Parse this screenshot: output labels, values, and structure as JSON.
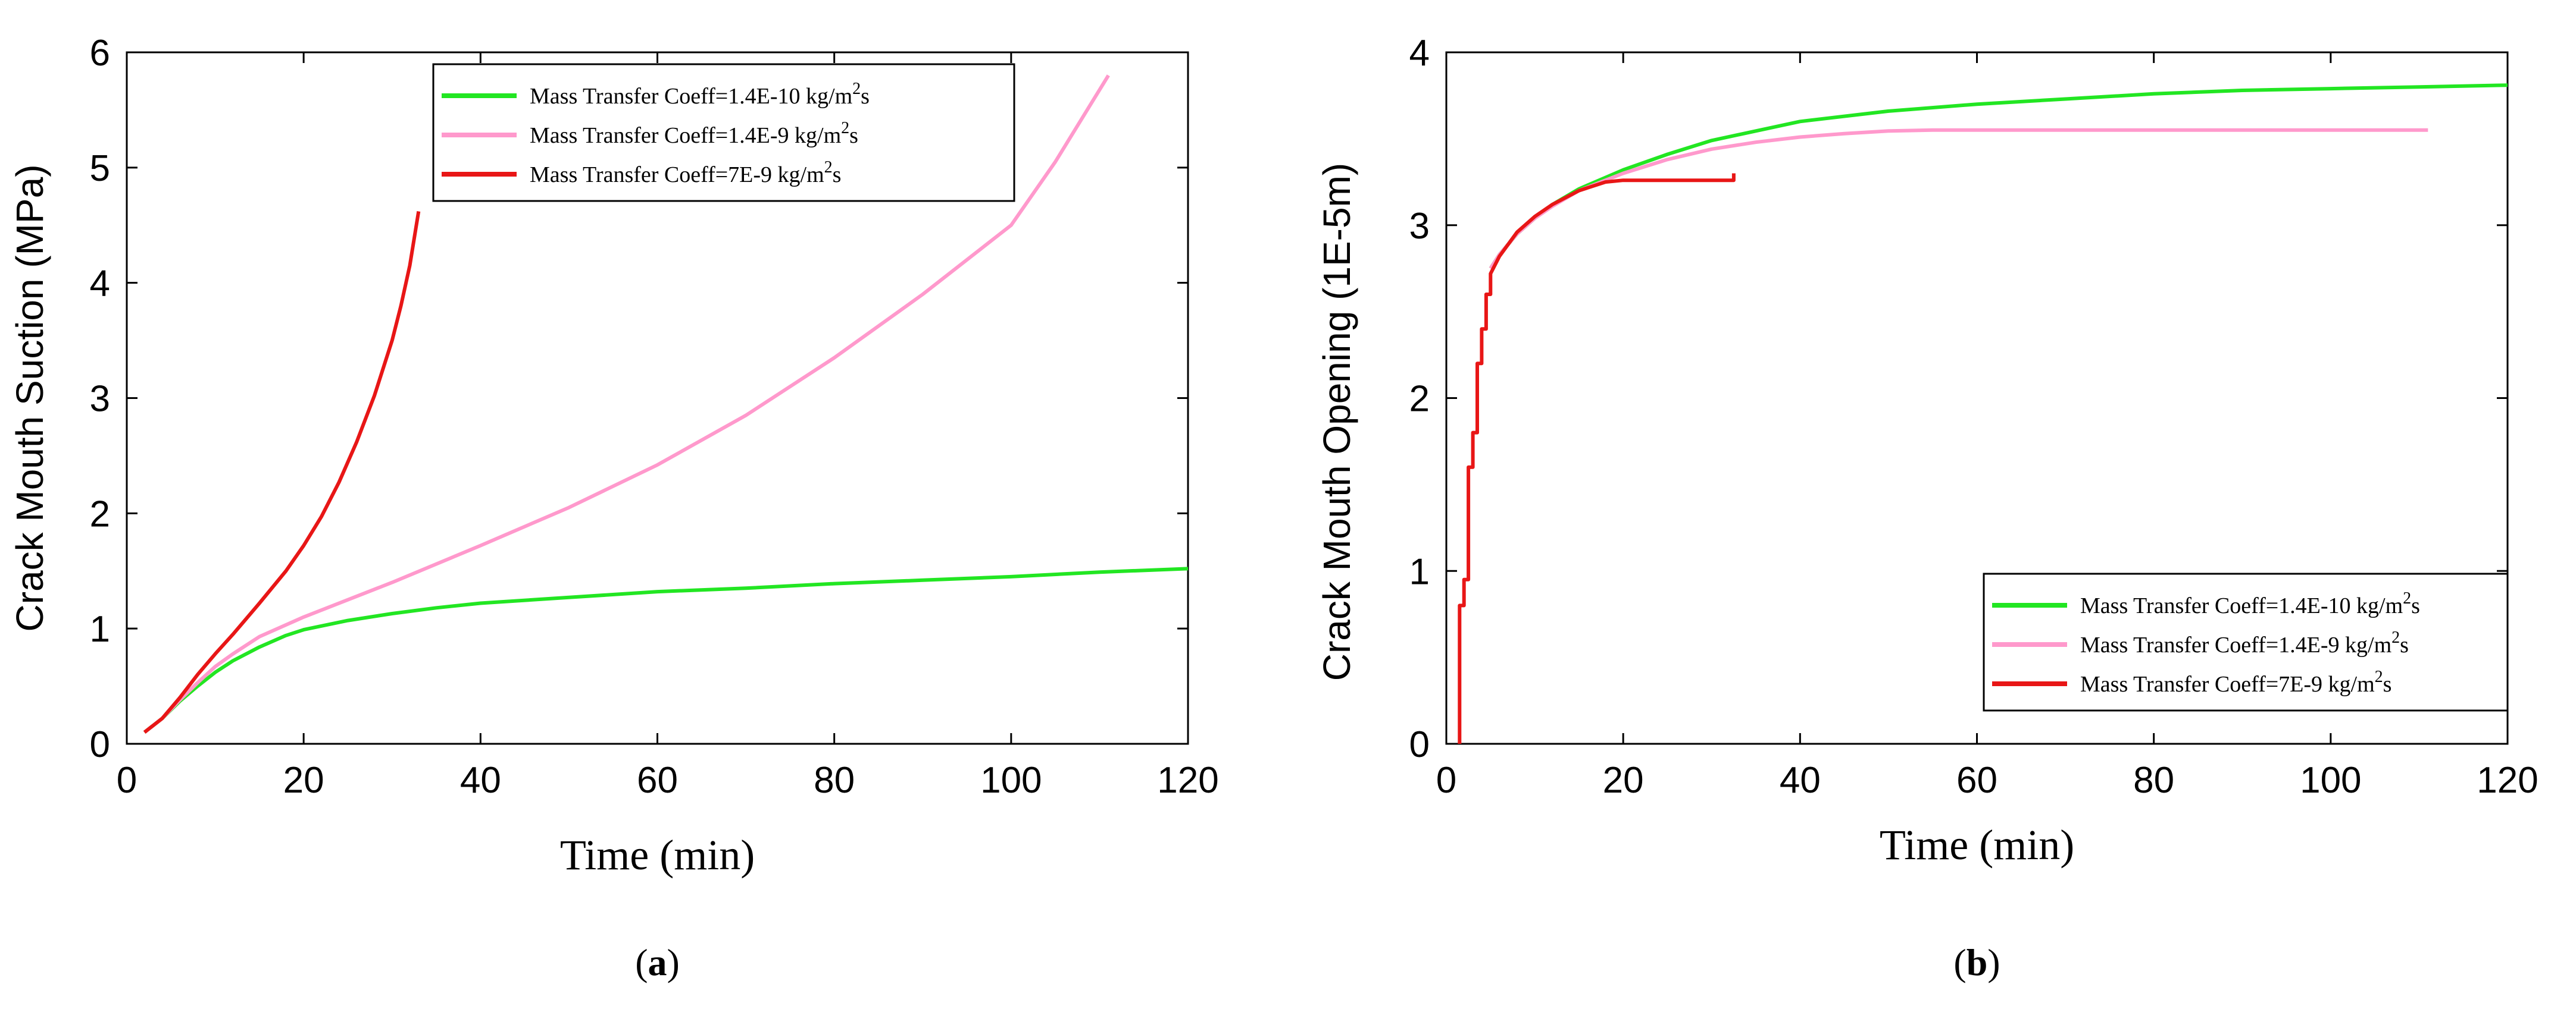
{
  "chart_data": [
    {
      "type": "line",
      "panel_label": "a",
      "title": "",
      "xlabel": "Time (min)",
      "ylabel": "Crack Mouth Suction (MPa)",
      "xlim": [
        0,
        120
      ],
      "ylim": [
        0,
        6
      ],
      "xticks": [
        "0",
        "20",
        "40",
        "60",
        "80",
        "100",
        "120"
      ],
      "yticks": [
        "0",
        "1",
        "2",
        "3",
        "4",
        "5",
        "6"
      ],
      "grid": false,
      "legend_position": "top-right",
      "series": [
        {
          "name": "Mass Transfer Coeff=1.4E-10 kg/m",
          "sup": "2",
          "unit_suffix": "s",
          "color": "#22e622",
          "x": [
            2,
            4,
            6,
            8,
            10,
            12,
            15,
            18,
            20,
            25,
            30,
            35,
            40,
            50,
            60,
            70,
            80,
            90,
            100,
            110,
            120
          ],
          "y": [
            0.1,
            0.22,
            0.37,
            0.5,
            0.62,
            0.72,
            0.84,
            0.94,
            0.99,
            1.07,
            1.13,
            1.18,
            1.22,
            1.27,
            1.32,
            1.35,
            1.39,
            1.42,
            1.45,
            1.49,
            1.52
          ]
        },
        {
          "name": "Mass Transfer Coeff=1.4E-9 kg/m",
          "sup": "2",
          "unit_suffix": "s",
          "color": "#ff99cc",
          "x": [
            2,
            4,
            6,
            8,
            10,
            12,
            15,
            20,
            25,
            30,
            40,
            50,
            60,
            70,
            80,
            90,
            100,
            105,
            111
          ],
          "y": [
            0.1,
            0.22,
            0.38,
            0.53,
            0.67,
            0.78,
            0.93,
            1.1,
            1.25,
            1.4,
            1.72,
            2.05,
            2.42,
            2.85,
            3.35,
            3.9,
            4.5,
            5.05,
            5.8
          ]
        },
        {
          "name": "Mass Transfer Coeff=7E-9 kg/m",
          "sup": "2",
          "unit_suffix": "s",
          "color": "#e81616",
          "x": [
            2,
            4,
            6,
            8,
            10,
            12,
            15,
            18,
            20,
            22,
            24,
            26,
            28,
            30,
            31,
            32,
            33
          ],
          "y": [
            0.1,
            0.22,
            0.4,
            0.6,
            0.78,
            0.95,
            1.22,
            1.5,
            1.72,
            1.97,
            2.27,
            2.62,
            3.02,
            3.5,
            3.8,
            4.15,
            4.62
          ]
        }
      ]
    },
    {
      "type": "line",
      "panel_label": "b",
      "title": "",
      "xlabel": "Time (min)",
      "ylabel": "Crack Mouth Opening (1E-5m)",
      "xlim": [
        0,
        120
      ],
      "ylim": [
        0,
        4
      ],
      "xticks": [
        "0",
        "20",
        "40",
        "60",
        "80",
        "100",
        "120"
      ],
      "yticks": [
        "0",
        "1",
        "2",
        "3",
        "4"
      ],
      "grid": false,
      "legend_position": "bottom-right",
      "series": [
        {
          "name": "Mass Transfer Coeff=1.4E-10 kg/m",
          "sup": "2",
          "unit_suffix": "s",
          "color": "#22e622",
          "x": [
            5,
            6,
            8,
            10,
            12,
            15,
            20,
            25,
            30,
            40,
            50,
            60,
            70,
            80,
            90,
            100,
            110,
            120
          ],
          "y": [
            2.75,
            2.83,
            2.95,
            3.04,
            3.12,
            3.21,
            3.32,
            3.41,
            3.49,
            3.6,
            3.66,
            3.7,
            3.73,
            3.76,
            3.78,
            3.79,
            3.8,
            3.81
          ]
        },
        {
          "name": "Mass Transfer Coeff=1.4E-9 kg/m",
          "sup": "2",
          "unit_suffix": "s",
          "color": "#ff99cc",
          "x": [
            5,
            6,
            8,
            10,
            12,
            15,
            20,
            25,
            30,
            35,
            40,
            45,
            50,
            55,
            60,
            80,
            100,
            111
          ],
          "y": [
            2.75,
            2.83,
            2.95,
            3.04,
            3.11,
            3.2,
            3.3,
            3.38,
            3.44,
            3.48,
            3.51,
            3.53,
            3.545,
            3.55,
            3.55,
            3.55,
            3.55,
            3.55
          ]
        },
        {
          "name": "Mass Transfer Coeff=7E-9 kg/m",
          "sup": "2",
          "unit_suffix": "s",
          "color": "#e81616",
          "x": [
            1.5,
            1.5,
            2,
            2,
            2.5,
            2.5,
            3,
            3,
            3.5,
            3.5,
            4,
            4,
            4.5,
            4.5,
            5,
            5,
            6,
            8,
            10,
            12,
            15,
            18,
            20,
            25,
            32.5,
            32.5
          ],
          "y": [
            0,
            0.8,
            0.8,
            0.95,
            0.95,
            1.6,
            1.6,
            1.8,
            1.8,
            2.2,
            2.2,
            2.4,
            2.4,
            2.6,
            2.6,
            2.72,
            2.82,
            2.96,
            3.05,
            3.12,
            3.2,
            3.25,
            3.26,
            3.26,
            3.26,
            3.3
          ]
        }
      ]
    }
  ]
}
